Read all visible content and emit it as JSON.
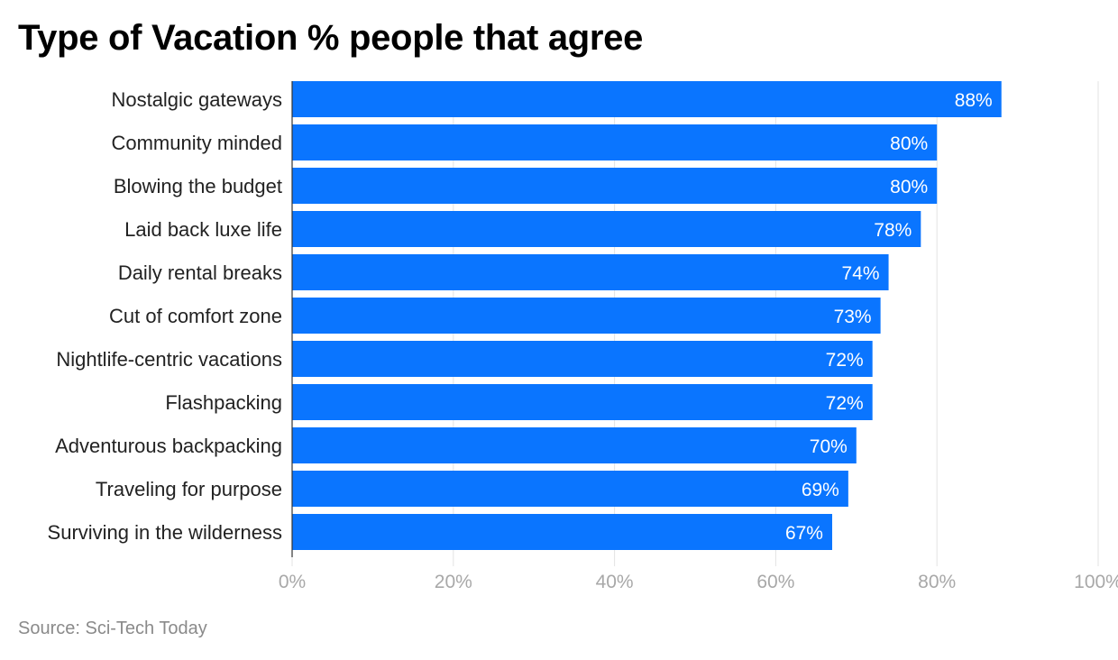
{
  "chart_data": {
    "type": "bar",
    "orientation": "horizontal",
    "title": "Type of Vacation % people that agree",
    "categories": [
      "Nostalgic gateways",
      "Community minded",
      "Blowing the budget",
      "Laid back luxe life",
      "Daily rental breaks",
      "Cut of comfort zone",
      "Nightlife-centric vacations",
      "Flashpacking",
      "Adventurous backpacking",
      "Traveling for purpose",
      "Surviving in the wilderness"
    ],
    "values": [
      88,
      80,
      80,
      78,
      74,
      73,
      72,
      72,
      70,
      69,
      67
    ],
    "value_labels": [
      "88%",
      "80%",
      "80%",
      "78%",
      "74%",
      "73%",
      "72%",
      "72%",
      "70%",
      "69%",
      "67%"
    ],
    "xlim": [
      0,
      100
    ],
    "x_ticks": [
      0,
      20,
      40,
      60,
      80,
      100
    ],
    "x_tick_labels": [
      "0%",
      "20%",
      "40%",
      "60%",
      "80%",
      "100%"
    ],
    "grid": true,
    "bar_color": "#0a75ff"
  },
  "source": "Source: Sci-Tech Today"
}
